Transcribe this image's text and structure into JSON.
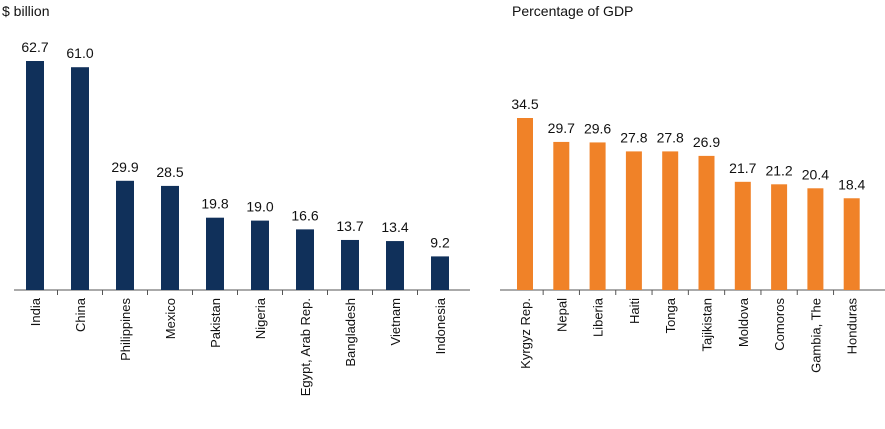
{
  "chart_data": [
    {
      "type": "bar",
      "unit_label": "$ billion",
      "categories": [
        "India",
        "China",
        "Philippines",
        "Mexico",
        "Pakistan",
        "Nigeria",
        "Egypt, Arab Rep.",
        "Bangladesh",
        "Vietnam",
        "Indonesia"
      ],
      "values": [
        62.7,
        61.0,
        29.9,
        28.5,
        19.8,
        19.0,
        16.6,
        13.7,
        13.4,
        9.2
      ],
      "value_labels": [
        "62.7",
        "61.0",
        "29.9",
        "28.5",
        "19.8",
        "19.0",
        "16.6",
        "13.7",
        "13.4",
        "9.2"
      ],
      "ylim": [
        0,
        62.7
      ],
      "color": "#10305a",
      "grid": false
    },
    {
      "type": "bar",
      "unit_label": "Percentage of GDP",
      "categories": [
        "Kyrgyz Rep.",
        "Nepal",
        "Liberia",
        "Haiti",
        "Tonga",
        "Tajikistan",
        "Moldova",
        "Comoros",
        "Gambia, The",
        "Honduras"
      ],
      "values": [
        34.5,
        29.7,
        29.6,
        27.8,
        27.8,
        26.9,
        21.7,
        21.2,
        20.4,
        18.4
      ],
      "value_labels": [
        "34.5",
        "29.7",
        "29.6",
        "27.8",
        "27.8",
        "26.9",
        "21.7",
        "21.2",
        "20.4",
        "18.4"
      ],
      "ylim": [
        0,
        34.5
      ],
      "color": "#f08228",
      "grid": false
    }
  ]
}
